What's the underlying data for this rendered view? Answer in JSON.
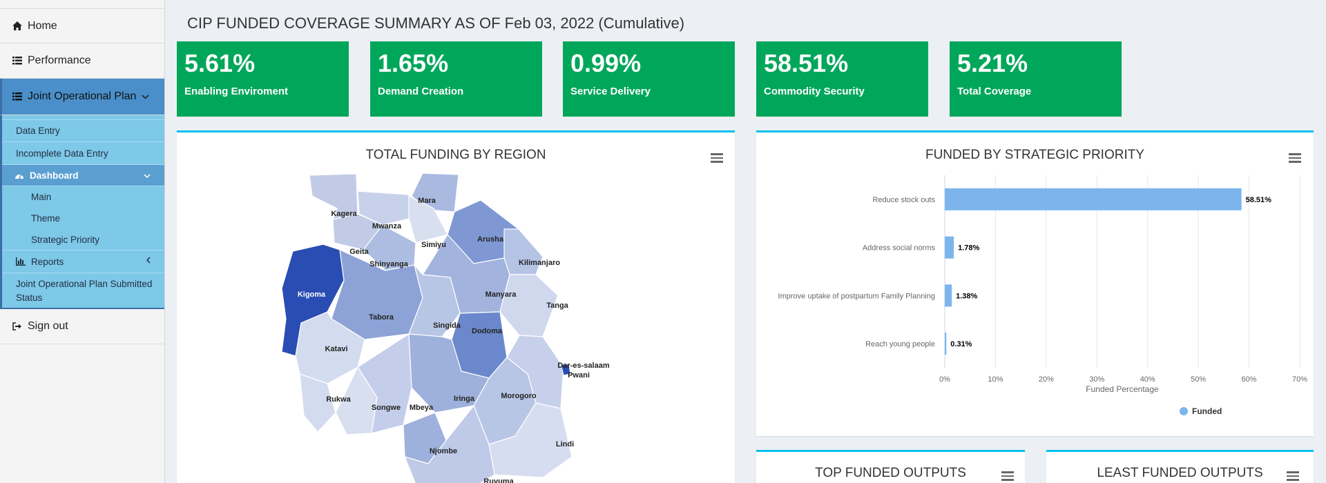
{
  "sidebar": {
    "home": "Home",
    "performance": "Performance",
    "jop": "Joint Operational Plan",
    "data_entry": "Data Entry",
    "incomplete": "Incomplete Data Entry",
    "dashboard": "Dashboard",
    "main": "Main",
    "theme": "Theme",
    "strategic": "Strategic Priority",
    "reports": "Reports",
    "jop_submitted": "Joint Operational Plan Submitted Status",
    "signout": "Sign out"
  },
  "header": {
    "title": "CIP FUNDED COVERAGE SUMMARY AS OF Feb 03, 2022 (Cumulative)"
  },
  "stats": [
    {
      "value": "5.61%",
      "label": "Enabling Enviroment"
    },
    {
      "value": "1.65%",
      "label": "Demand Creation"
    },
    {
      "value": "0.99%",
      "label": "Service Delivery"
    },
    {
      "value": "58.51%",
      "label": "Commodity Security"
    },
    {
      "value": "5.21%",
      "label": "Total Coverage"
    }
  ],
  "colors": {
    "stat_green": "#00a65a",
    "box_top": "#00c0ef",
    "bar": "#7cb5ec",
    "map_dark": "#2a4db3",
    "map_light": "#dde4f3"
  },
  "map_box": {
    "title": "TOTAL FUNDING BY REGION",
    "regions": [
      "Mara",
      "Kagera",
      "Mwanza",
      "Simiyu",
      "Arusha",
      "Geita",
      "Shinyanga",
      "Kilimanjaro",
      "Kigoma",
      "Manyara",
      "Tanga",
      "Tabora",
      "Singida",
      "Dodoma",
      "Katavi",
      "Dar-es-salaam",
      "Pwani",
      "Rukwa",
      "Iringa",
      "Morogoro",
      "Songwe",
      "Mbeya",
      "Lindi",
      "Njombe",
      "Ruvuma"
    ]
  },
  "bar_box": {
    "title": "FUNDED BY STRATEGIC PRIORITY"
  },
  "chart_data": {
    "type": "bar",
    "orientation": "horizontal",
    "title": "FUNDED BY STRATEGIC PRIORITY",
    "categories": [
      "Reduce stock outs",
      "Address social norms",
      "Improve uptake of postpartum Family Planning",
      "Reach young people"
    ],
    "series": [
      {
        "name": "Funded",
        "values": [
          58.51,
          1.78,
          1.38,
          0.31
        ]
      }
    ],
    "data_labels": [
      "58.51%",
      "1.78%",
      "1.38%",
      "0.31%"
    ],
    "xlabel": "Funded Percentage",
    "ticks": [
      "0%",
      "10%",
      "20%",
      "30%",
      "40%",
      "50%",
      "60%",
      "70%"
    ],
    "xlim": [
      0,
      70
    ],
    "grid": true,
    "legend": "bottom-center"
  },
  "top_box": {
    "title": "TOP FUNDED OUTPUTS"
  },
  "least_box": {
    "title": "LEAST FUNDED OUTPUTS"
  }
}
